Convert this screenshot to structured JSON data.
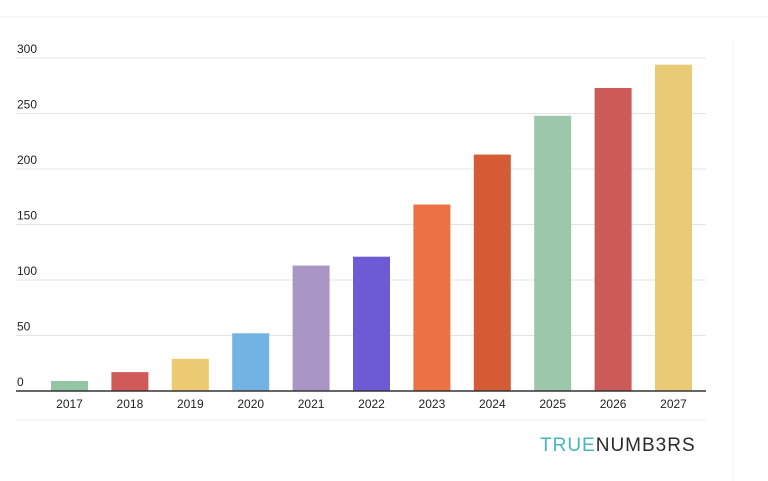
{
  "chart_data": {
    "type": "bar",
    "title": "",
    "xlabel": "",
    "ylabel": "",
    "categories": [
      "2017",
      "2018",
      "2019",
      "2020",
      "2021",
      "2022",
      "2023",
      "2024",
      "2025",
      "2026",
      "2027"
    ],
    "values": [
      9,
      17,
      29,
      52,
      113,
      121,
      168,
      213,
      248,
      273,
      294
    ],
    "colors": [
      "#93c4a3",
      "#cf5a57",
      "#ebca72",
      "#72b3e3",
      "#a996c6",
      "#6c5bd5",
      "#ec7245",
      "#d55b35",
      "#9cc7ab",
      "#cc5a58",
      "#e9cb77"
    ],
    "ylim": [
      0,
      300
    ],
    "yticks": [
      0,
      50,
      100,
      150,
      200,
      250,
      300
    ],
    "grid": true,
    "legend": "none"
  },
  "branding": {
    "part1": "TRUE",
    "part2": "NUMB3RS",
    "color1": "#46b6bd",
    "color2": "#2a2a2a"
  }
}
